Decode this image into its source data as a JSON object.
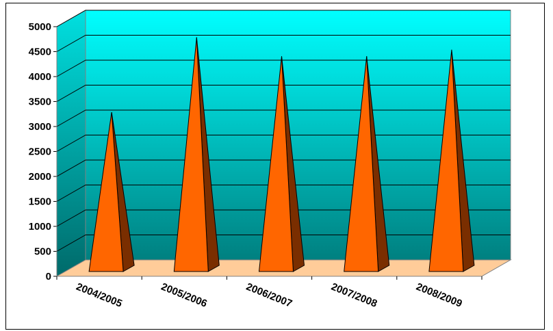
{
  "chart_data": {
    "type": "bar",
    "bar_shape": "pyramid",
    "style": "3d",
    "categories": [
      "2004/2005",
      "2005/2006",
      "2006/2007",
      "2007/2008",
      "2008/2009"
    ],
    "values": [
      3150,
      4650,
      4270,
      4270,
      4400
    ],
    "title": "",
    "xlabel": "",
    "ylabel": "",
    "ylim": [
      0,
      5000
    ],
    "yticks": [
      "0",
      "500",
      "1000",
      "1500",
      "2000",
      "2500",
      "3000",
      "3500",
      "4000",
      "4500",
      "5000"
    ],
    "grid": true,
    "legend": "none",
    "colors": {
      "bar_front": "#FF6600",
      "bar_side": "#7A2E00",
      "wall_top": "#00FFFF",
      "wall_bottom": "#008080",
      "floor": "#FFCC99",
      "gridline": "#000000"
    }
  }
}
